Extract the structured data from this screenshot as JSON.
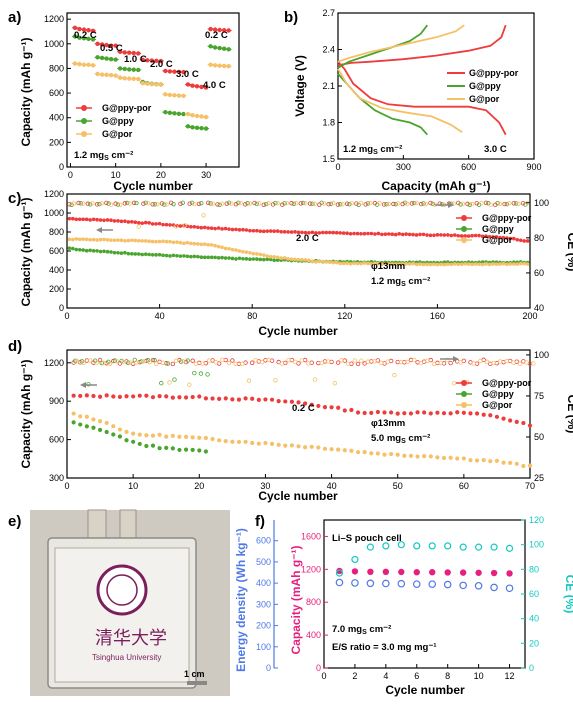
{
  "panels": {
    "a": {
      "label": "a)",
      "xlabel": "Cycle number",
      "ylabel": "Capacity (mAh g⁻¹)",
      "xticks": [
        "0",
        "10",
        "20",
        "30"
      ],
      "yticks": [
        "0",
        "200",
        "400",
        "600",
        "800",
        "1000",
        "1200"
      ],
      "rate_labels": [
        "0.2 C",
        "0.5 C",
        "1.0 C",
        "2.0 C",
        "3.0 C",
        "4.0 C",
        "0.2 C"
      ],
      "loading": "1.2 mg",
      "loading_sub": "S",
      "loading_unit": " cm⁻²",
      "legend": [
        "G@ppy-por",
        "G@ppy",
        "G@por"
      ]
    },
    "b": {
      "label": "b)",
      "xlabel": "Capacity (mAh g⁻¹)",
      "ylabel": "Voltage (V)",
      "xticks": [
        "0",
        "300",
        "600",
        "900"
      ],
      "yticks": [
        "1.5",
        "1.8",
        "2.1",
        "2.4",
        "2.7"
      ],
      "loading": "1.2 mg",
      "loading_sub": "S",
      "loading_unit": " cm⁻²",
      "rate": "3.0 C",
      "legend": [
        "G@ppy-por",
        "G@ppy",
        "G@por"
      ]
    },
    "c": {
      "label": "c)",
      "xlabel": "Cycle number",
      "ylabel": "Capacity (mAh g⁻¹)",
      "ylabel2": "CE (%)",
      "xticks": [
        "0",
        "40",
        "80",
        "120",
        "160",
        "200"
      ],
      "yticks": [
        "0",
        "200",
        "400",
        "600",
        "800",
        "1000",
        "1200"
      ],
      "y2ticks": [
        "40",
        "60",
        "80",
        "100"
      ],
      "rate": "2.0 C",
      "diameter": "φ13mm",
      "loading": "1.2 mg",
      "loading_sub": "S",
      "loading_unit": " cm⁻²",
      "legend": [
        "G@ppy-por",
        "G@ppy",
        "G@por"
      ]
    },
    "d": {
      "label": "d)",
      "xlabel": "Cycle number",
      "ylabel": "Capacity (mAh g⁻¹)",
      "ylabel2": "CE (%)",
      "xticks": [
        "0",
        "10",
        "20",
        "30",
        "40",
        "50",
        "60",
        "70"
      ],
      "yticks": [
        "300",
        "600",
        "900",
        "1200"
      ],
      "y2ticks": [
        "25",
        "50",
        "75",
        "100"
      ],
      "rate": "0.2 C",
      "diameter": "φ13mm",
      "loading": "5.0 mg",
      "loading_sub": "S",
      "loading_unit": " cm⁻²",
      "legend": [
        "G@ppy-por",
        "G@ppy",
        "G@por"
      ]
    },
    "e": {
      "label": "e)",
      "scale": "1 cm",
      "logo_text": "清华大学",
      "logo_sub": "Tsinghua University"
    },
    "f": {
      "label": "f)",
      "xlabel": "Cycle number",
      "ylabel": "Capacity (mAh g⁻¹)",
      "ylabel_energy": "Energy density (Wh kg⁻¹)",
      "ylabel2": "CE (%)",
      "xticks": [
        "0",
        "2",
        "4",
        "6",
        "8",
        "10",
        "12"
      ],
      "yticks": [
        "0",
        "400",
        "800",
        "1200",
        "1600"
      ],
      "energy_ticks": [
        "0",
        "100",
        "200",
        "300",
        "400",
        "500",
        "600"
      ],
      "y2ticks": [
        "0",
        "20",
        "40",
        "60",
        "80",
        "100",
        "120"
      ],
      "title": "Li–S pouch cell",
      "loading": "7.0 mg",
      "loading_sub": "S",
      "loading_unit": " cm⁻²",
      "es_ratio": "E/S ratio = 3.0 mg mg⁻¹"
    }
  },
  "colors": {
    "ppy_por": "#ee3b3b",
    "ppy": "#4aa52e",
    "por": "#f5c067",
    "energy": "#4f79e8",
    "capacity": "#e6207f",
    "ce": "#12c9c2"
  },
  "chart_data": [
    {
      "panel": "a",
      "type": "scatter",
      "xlim": [
        0,
        35
      ],
      "ylim": [
        0,
        1250
      ],
      "series": [
        {
          "name": "G@ppy-por",
          "x": [
            1,
            2,
            3,
            4,
            5,
            6,
            7,
            8,
            9,
            10,
            11,
            12,
            13,
            14,
            15,
            16,
            17,
            18,
            19,
            20,
            21,
            22,
            23,
            24,
            25,
            26,
            27,
            28,
            29,
            30,
            31,
            32,
            33,
            34,
            35
          ],
          "values": [
            1130,
            1120,
            1115,
            1110,
            1105,
            1000,
            995,
            990,
            985,
            985,
            935,
            930,
            928,
            925,
            922,
            870,
            866,
            864,
            862,
            860,
            780,
            776,
            774,
            772,
            770,
            670,
            660,
            655,
            650,
            645,
            1120,
            1115,
            1112,
            1110,
            1108
          ]
        },
        {
          "name": "G@ppy",
          "x": [
            1,
            2,
            3,
            4,
            5,
            6,
            7,
            8,
            9,
            10,
            11,
            12,
            13,
            14,
            15,
            16,
            17,
            18,
            19,
            20,
            21,
            22,
            23,
            24,
            25,
            26,
            27,
            28,
            29,
            30,
            31,
            32,
            33,
            34,
            35
          ],
          "values": [
            1060,
            1050,
            1045,
            1040,
            1035,
            890,
            885,
            880,
            875,
            872,
            800,
            796,
            792,
            790,
            788,
            690,
            680,
            675,
            672,
            670,
            445,
            440,
            436,
            432,
            430,
            330,
            322,
            318,
            315,
            312,
            980,
            970,
            965,
            960,
            955
          ]
        },
        {
          "name": "G@por",
          "x": [
            1,
            2,
            3,
            4,
            5,
            6,
            7,
            8,
            9,
            10,
            11,
            12,
            13,
            14,
            15,
            16,
            17,
            18,
            19,
            20,
            21,
            22,
            23,
            24,
            25,
            26,
            27,
            28,
            29,
            30,
            31,
            32,
            33,
            34,
            35
          ],
          "values": [
            840,
            835,
            830,
            830,
            825,
            755,
            750,
            748,
            745,
            742,
            725,
            720,
            718,
            716,
            714,
            680,
            676,
            672,
            670,
            668,
            590,
            585,
            582,
            580,
            578,
            430,
            420,
            414,
            410,
            405,
            830,
            825,
            822,
            820,
            818
          ]
        }
      ]
    },
    {
      "panel": "b",
      "type": "line",
      "xlim": [
        0,
        900
      ],
      "ylim": [
        1.5,
        2.7
      ],
      "series": [
        {
          "name": "G@ppy-por",
          "kind": "charge",
          "x": [
            0,
            60,
            150,
            300,
            450,
            600,
            700,
            750,
            770
          ],
          "values": [
            2.27,
            2.29,
            2.3,
            2.32,
            2.35,
            2.39,
            2.43,
            2.5,
            2.6
          ]
        },
        {
          "name": "G@ppy-por",
          "kind": "discharge",
          "x": [
            0,
            30,
            70,
            150,
            230,
            350,
            500,
            600,
            680,
            740,
            770
          ],
          "values": [
            2.3,
            2.24,
            2.12,
            2.0,
            1.95,
            1.93,
            1.93,
            1.93,
            1.9,
            1.8,
            1.7
          ]
        },
        {
          "name": "G@ppy",
          "kind": "charge",
          "x": [
            0,
            50,
            150,
            250,
            330,
            380,
            410
          ],
          "values": [
            2.25,
            2.3,
            2.36,
            2.42,
            2.47,
            2.53,
            2.6
          ]
        },
        {
          "name": "G@ppy",
          "kind": "discharge",
          "x": [
            0,
            40,
            100,
            170,
            250,
            330,
            380,
            410
          ],
          "values": [
            2.2,
            2.12,
            2.0,
            1.9,
            1.83,
            1.8,
            1.76,
            1.7
          ]
        },
        {
          "name": "G@por",
          "kind": "charge",
          "x": [
            0,
            50,
            150,
            300,
            450,
            540,
            580
          ],
          "values": [
            2.3,
            2.33,
            2.38,
            2.44,
            2.5,
            2.55,
            2.6
          ]
        },
        {
          "name": "G@por",
          "kind": "discharge",
          "x": [
            0,
            40,
            100,
            200,
            320,
            430,
            520,
            570
          ],
          "values": [
            2.24,
            2.12,
            2.0,
            1.92,
            1.88,
            1.85,
            1.78,
            1.72
          ]
        }
      ]
    },
    {
      "panel": "c",
      "type": "scatter",
      "xlim": [
        0,
        200
      ],
      "ylim": [
        0,
        1250
      ],
      "y2lim": [
        40,
        105
      ],
      "series": [
        {
          "name": "G@ppy-por",
          "x": [
            1,
            20,
            40,
            60,
            80,
            100,
            120,
            140,
            160,
            180,
            190,
            200
          ],
          "values": [
            980,
            960,
            920,
            880,
            850,
            830,
            820,
            810,
            800,
            790,
            770,
            730
          ]
        },
        {
          "name": "G@ppy",
          "x": [
            1,
            5,
            20,
            40,
            60,
            80,
            100,
            120,
            140,
            160,
            180,
            200
          ],
          "values": [
            660,
            640,
            610,
            580,
            555,
            535,
            520,
            505,
            500,
            500,
            500,
            500
          ]
        },
        {
          "name": "G@por",
          "x": [
            1,
            20,
            40,
            60,
            70,
            80,
            90,
            100,
            110,
            120,
            140,
            160,
            180,
            200
          ],
          "values": [
            755,
            745,
            730,
            700,
            650,
            600,
            560,
            530,
            505,
            490,
            485,
            480,
            480,
            485
          ]
        },
        {
          "name": "CE G@ppy-por",
          "x": [
            1,
            50,
            100,
            150,
            200
          ],
          "values": [
            100,
            100,
            100,
            100,
            100
          ]
        }
      ]
    },
    {
      "panel": "d",
      "type": "scatter",
      "xlim": [
        0,
        70
      ],
      "ylim": [
        300,
        1300
      ],
      "y2lim": [
        25,
        103
      ],
      "series": [
        {
          "name": "G@ppy-por",
          "x": [
            1,
            5,
            10,
            15,
            20,
            25,
            30,
            35,
            40,
            45,
            50,
            55,
            60,
            65,
            70
          ],
          "values": [
            940,
            940,
            940,
            935,
            930,
            920,
            910,
            890,
            850,
            810,
            810,
            810,
            810,
            780,
            710
          ]
        },
        {
          "name": "G@ppy",
          "x": [
            1,
            3,
            5,
            7,
            9,
            11,
            13,
            15,
            17,
            19,
            21
          ],
          "values": [
            730,
            700,
            680,
            640,
            600,
            560,
            550,
            530,
            520,
            515,
            510
          ]
        },
        {
          "name": "G@por",
          "x": [
            1,
            5,
            10,
            15,
            20,
            25,
            30,
            35,
            40,
            45,
            50,
            55,
            60,
            65,
            70
          ],
          "values": [
            800,
            750,
            640,
            630,
            610,
            590,
            570,
            550,
            530,
            500,
            480,
            470,
            450,
            430,
            390
          ]
        }
      ]
    },
    {
      "panel": "f",
      "type": "scatter",
      "xlim": [
        0,
        13
      ],
      "ylim": [
        0,
        1800
      ],
      "y2lim": [
        0,
        120
      ],
      "series": [
        {
          "name": "Capacity",
          "x": [
            1,
            2,
            3,
            4,
            5,
            6,
            7,
            8,
            9,
            10,
            11,
            12
          ],
          "values": [
            1180,
            1175,
            1170,
            1170,
            1168,
            1165,
            1165,
            1162,
            1160,
            1158,
            1155,
            1150
          ]
        },
        {
          "name": "Energy density",
          "x": [
            1,
            2,
            3,
            4,
            5,
            6,
            7,
            8,
            9,
            10,
            11,
            12
          ],
          "values": [
            1040,
            1035,
            1030,
            1028,
            1025,
            1020,
            1020,
            1015,
            1005,
            1000,
            980,
            970
          ]
        },
        {
          "name": "CE",
          "x": [
            1,
            2,
            3,
            4,
            5,
            6,
            7,
            8,
            9,
            10,
            11,
            12
          ],
          "values": [
            77,
            88,
            98,
            99,
            100,
            99,
            99,
            99,
            98,
            98,
            98,
            97
          ]
        }
      ]
    }
  ]
}
